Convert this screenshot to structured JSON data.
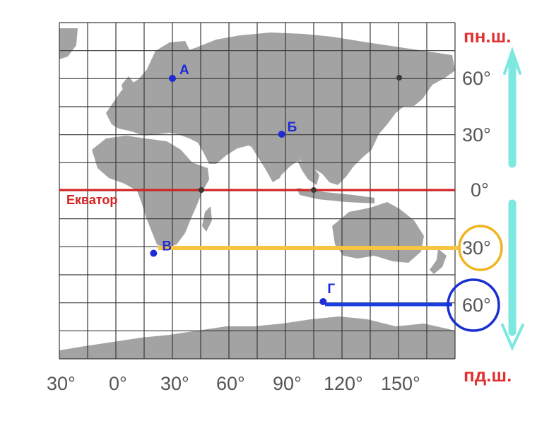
{
  "hemispheres": {
    "north": "пн.ш.",
    "south": "пд.ш."
  },
  "equator_label": "Екватор",
  "latitude_labels": [
    "60°",
    "30°",
    "0°",
    "30°",
    "60°"
  ],
  "longitude_labels": [
    "30°",
    "0°",
    "30°",
    "60°",
    "90°",
    "120°",
    "150°"
  ],
  "points": [
    {
      "name": "А",
      "lon": 30,
      "lat": 60
    },
    {
      "name": "Б",
      "lon": 88,
      "lat": 30
    },
    {
      "name": "В",
      "lon": 20,
      "lat": -34
    },
    {
      "name": "Г",
      "lon": 110,
      "lat": -60
    }
  ],
  "colors": {
    "grid": "#3a3a3a",
    "land": "#a3a3a3",
    "equator": "#d42020",
    "point": "#1f2bd6",
    "highlight_30": "#f7c542",
    "highlight_60": "#1a3de0",
    "arrows": "#7ce8e0",
    "hemi_text": "#e03030"
  }
}
